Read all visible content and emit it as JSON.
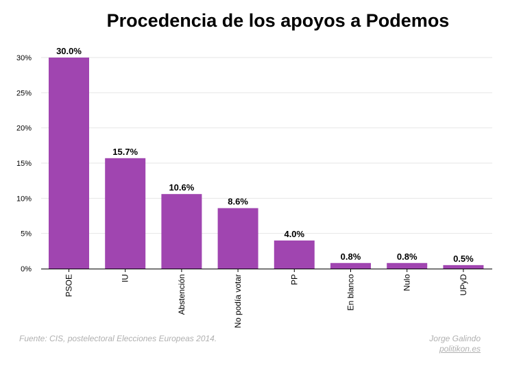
{
  "chart_data": {
    "type": "bar",
    "title": "Procedencia de los apoyos a Podemos",
    "categories": [
      "PSOE",
      "IU",
      "Abstención",
      "No podía votar",
      "PP",
      "En blanco",
      "Nulo",
      "UPyD"
    ],
    "values": [
      30.0,
      15.7,
      10.6,
      8.6,
      4.0,
      0.8,
      0.8,
      0.5
    ],
    "data_labels": [
      "30.0%",
      "15.7%",
      "10.6%",
      "8.6%",
      "4.0%",
      "0.8%",
      "0.8%",
      "0.5%"
    ],
    "y_ticks": [
      0,
      5,
      10,
      15,
      20,
      25,
      30
    ],
    "y_tick_labels": [
      "0%",
      "5%",
      "10%",
      "15%",
      "20%",
      "25%",
      "30%"
    ],
    "ylim": [
      0,
      30
    ],
    "xlabel": "",
    "ylabel": "",
    "grid": true,
    "bar_color": "#a045b0"
  },
  "footer": {
    "source": "Fuente: CIS, postelectoral Elecciones Europeas 2014.",
    "author": "Jorge Galindo",
    "site": "politikon.es"
  }
}
